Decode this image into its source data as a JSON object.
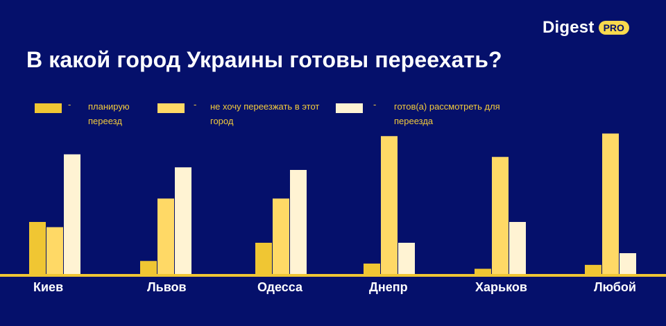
{
  "brand": {
    "name": "Digest",
    "badge": "PRO"
  },
  "chart_data": {
    "type": "bar",
    "title": "В какой город Украины готовы переехать?",
    "categories": [
      "Киев",
      "Львов",
      "Одесса",
      "Днепр",
      "Харьков",
      "Любой"
    ],
    "series": [
      {
        "name": "планирую переезд",
        "color": "#f0c633",
        "values": [
          20,
          5,
          12,
          4,
          2,
          3.5
        ]
      },
      {
        "name": "не хочу переезжать в этот город",
        "color": "#ffd966",
        "values": [
          18,
          29,
          29,
          53,
          45,
          54
        ]
      },
      {
        "name": "готов(а) рассмотреть для переезда",
        "color": "#fff3d3",
        "values": [
          46,
          41,
          40,
          12,
          20,
          8
        ]
      }
    ],
    "legend": [
      {
        "dash": "-",
        "label": "планирую переезд",
        "color": "#f0c633"
      },
      {
        "dash": "-",
        "label": "не хочу переезжать в этот город",
        "color": "#ffd966"
      },
      {
        "dash": "-",
        "label": "готов(а) рассмотреть для переезда",
        "color": "#fff3d3"
      }
    ],
    "ylim": [
      0,
      56
    ],
    "grid": false,
    "axis_color": "#f0c633",
    "legend_position": "top-left"
  }
}
